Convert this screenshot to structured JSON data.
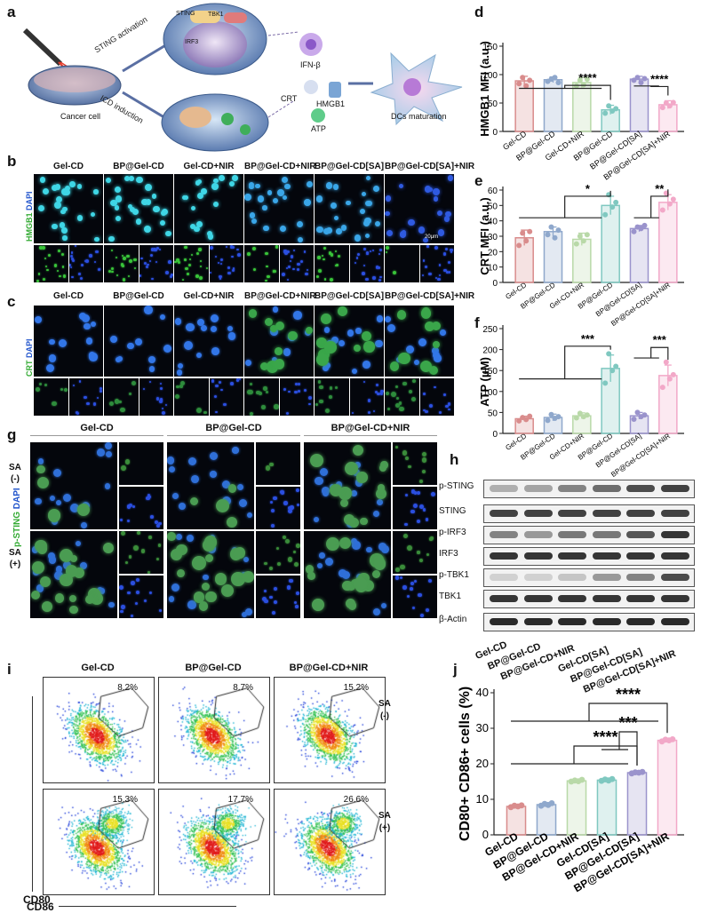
{
  "panel_letters": [
    "a",
    "b",
    "c",
    "d",
    "e",
    "f",
    "g",
    "h",
    "i",
    "j"
  ],
  "schematic": {
    "labels": [
      "STING activation",
      "ICD induction",
      "Cancer cell",
      "IFN-β",
      "CRT",
      "HMGB1",
      "ATP",
      "DCs maturation",
      "STING",
      "TBK1",
      "IRF3",
      "IRF3"
    ]
  },
  "groups": [
    "Gel-CD",
    "BP@Gel-CD",
    "Gel-CD+NIR",
    "BP@Gel-CD+NIR",
    "BP@Gel-CD[SA]",
    "BP@Gel-CD[SA]+NIR"
  ],
  "groups_h": [
    "Gel-CD",
    "BP@Gel-CD",
    "BP@Gel-CD+NIR",
    "Gel-CD[SA]",
    "BP@Gel-CD[SA]",
    "BP@Gel-CD[SA]+NIR"
  ],
  "groups_g": [
    "Gel-CD",
    "BP@Gel-CD",
    "BP@Gel-CD+NIR"
  ],
  "panel_b": {
    "stain_green": "HMGB1",
    "stain_blue": "DAPI",
    "scale": "20μm",
    "scale_small": "50 μm"
  },
  "panel_c": {
    "stain_green": "CRT",
    "stain_blue": "DAPI",
    "scale": "50μm",
    "scale_small": "50 μm"
  },
  "panel_g": {
    "stain_green": "p-STING",
    "stain_blue": "DAPI",
    "rows": [
      "SA\n(-)",
      "SA\n(+)"
    ],
    "scale": "50um"
  },
  "panel_h": {
    "bands": [
      "p-STING",
      "STING",
      "p-IRF3",
      "IRF3",
      "p-TBK1",
      "TBK1",
      "β-Actin"
    ]
  },
  "panel_i": {
    "xlabel": "CD86",
    "ylabel": "CD80",
    "rows": [
      "SA\n(-)",
      "SA\n(+)"
    ],
    "percent_top": [
      "8.2%",
      "8.7%",
      "15.2%"
    ],
    "percent_bottom": [
      "15.3%",
      "17.7%",
      "26.6%"
    ]
  },
  "colors": {
    "c1": "#d98c8c",
    "c2": "#8fa8cc",
    "c3": "#b9d9a8",
    "c4": "#7fc8c0",
    "c5": "#9a93cc",
    "c6": "#f2a8c8"
  },
  "chart_data": [
    {
      "panel": "d",
      "type": "bar",
      "ylabel": "HMGB1 MFI (a.u.)",
      "ylim": [
        0,
        150
      ],
      "yticks": [
        0,
        50,
        100,
        150
      ],
      "categories": [
        "Gel-CD",
        "BP@Gel-CD",
        "Gel-CD+NIR",
        "BP@Gel-CD",
        "BP@Gel-CD[SA]",
        "BP@Gel-CD[SA]+NIR"
      ],
      "values": [
        89,
        91,
        86,
        38,
        92,
        47
      ],
      "errors": [
        8,
        5,
        9,
        8,
        5,
        7
      ],
      "points": [
        [
          84,
          95,
          80,
          90
        ],
        [
          88,
          92,
          95,
          86
        ],
        [
          80,
          90,
          82,
          92
        ],
        [
          32,
          45,
          36,
          40
        ],
        [
          90,
          95,
          86,
          93
        ],
        [
          42,
          50,
          45,
          51
        ]
      ],
      "significance": [
        "****",
        "****"
      ]
    },
    {
      "panel": "e",
      "type": "bar",
      "ylabel": "CRT MFI (a.u.)",
      "ylim": [
        0,
        60
      ],
      "yticks": [
        0,
        10,
        20,
        30,
        40,
        50,
        60
      ],
      "categories": [
        "Gel-CD",
        "BP@Gel-CD",
        "Gel-CD+NIR",
        "BP@Gel-CD",
        "BP@Gel-CD[SA]",
        "BP@Gel-CD[SA]+NIR"
      ],
      "values": [
        29,
        33,
        28,
        50,
        35,
        52
      ],
      "errors": [
        5,
        3,
        4,
        6,
        2,
        5
      ],
      "points": [
        [
          24,
          32,
          27,
          33
        ],
        [
          31,
          36,
          29,
          34
        ],
        [
          25,
          30,
          27,
          31
        ],
        [
          44,
          57,
          49,
          52
        ],
        [
          33,
          36,
          35,
          37
        ],
        [
          47,
          58,
          51,
          54
        ]
      ],
      "significance": [
        "*",
        "**"
      ]
    },
    {
      "panel": "f",
      "type": "bar",
      "ylabel": "ATP (μM)",
      "ylim": [
        0,
        250
      ],
      "yticks": [
        0,
        50,
        100,
        150,
        200,
        250
      ],
      "categories": [
        "Gel-CD",
        "BP@Gel-CD",
        "Gel-CD+NIR",
        "BP@Gel-CD",
        "BP@Gel-CD[SA]",
        "BP@Gel-CD[SA]+NIR"
      ],
      "values": [
        35,
        38,
        42,
        155,
        42,
        138
      ],
      "errors": [
        6,
        8,
        7,
        32,
        8,
        25
      ],
      "points": [
        [
          30,
          38,
          33,
          41
        ],
        [
          31,
          45,
          36,
          40
        ],
        [
          37,
          48,
          40,
          44
        ],
        [
          120,
          190,
          150,
          160
        ],
        [
          34,
          50,
          40,
          44
        ],
        [
          110,
          170,
          130,
          140
        ]
      ],
      "significance": [
        "***",
        "***"
      ]
    },
    {
      "panel": "j",
      "type": "bar",
      "ylabel": "CD80+ CD86+ cells (%)",
      "ylim": [
        0,
        40
      ],
      "yticks": [
        0,
        10,
        20,
        30,
        40
      ],
      "categories": [
        "Gel-CD",
        "BP@Gel-CD",
        "BP@Gel-CD+NIR",
        "Gel-CD[SA]",
        "BP@Gel-CD[SA]",
        "BP@Gel-CD[SA]+NIR"
      ],
      "values": [
        8,
        8.5,
        15.2,
        15.4,
        17.5,
        26.6
      ],
      "errors": [
        0.5,
        0.6,
        0.5,
        0.6,
        0.5,
        0.6
      ],
      "points": [
        [
          7.8,
          8.2,
          8.0,
          8.3
        ],
        [
          8.2,
          8.7,
          8.4,
          8.9
        ],
        [
          15.0,
          15.3,
          15.1,
          15.5
        ],
        [
          15.2,
          15.6,
          15.3,
          15.7
        ],
        [
          17.3,
          17.6,
          17.5,
          17.7
        ],
        [
          26.3,
          26.8,
          26.6,
          26.9
        ]
      ],
      "significance": [
        "****",
        "***",
        "****"
      ]
    }
  ]
}
